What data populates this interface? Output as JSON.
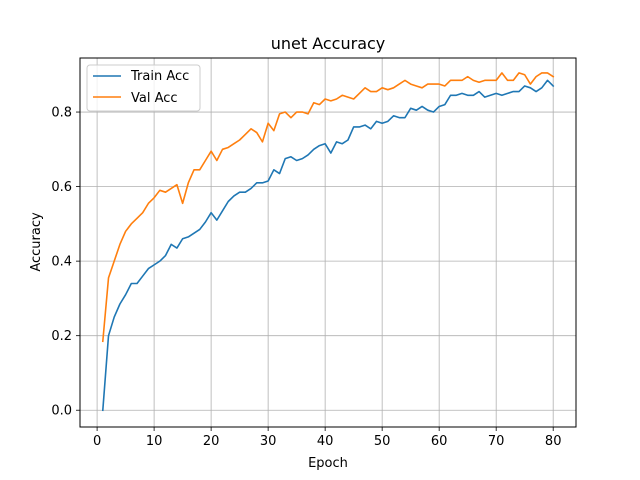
{
  "chart_data": {
    "type": "line",
    "title": "unet Accuracy",
    "xlabel": "Epoch",
    "ylabel": "Accuracy",
    "xlim": [
      -3,
      84
    ],
    "ylim": [
      -0.045,
      0.945
    ],
    "xticks": [
      0,
      10,
      20,
      30,
      40,
      50,
      60,
      70,
      80
    ],
    "yticks": [
      0.0,
      0.2,
      0.4,
      0.6,
      0.8
    ],
    "ytick_labels": [
      "0.0",
      "0.2",
      "0.4",
      "0.6",
      "0.8"
    ],
    "grid": true,
    "legend_position": "top-left",
    "x": [
      1,
      2,
      3,
      4,
      5,
      6,
      7,
      8,
      9,
      10,
      11,
      12,
      13,
      14,
      15,
      16,
      17,
      18,
      19,
      20,
      21,
      22,
      23,
      24,
      25,
      26,
      27,
      28,
      29,
      30,
      31,
      32,
      33,
      34,
      35,
      36,
      37,
      38,
      39,
      40,
      41,
      42,
      43,
      44,
      45,
      46,
      47,
      48,
      49,
      50,
      51,
      52,
      53,
      54,
      55,
      56,
      57,
      58,
      59,
      60,
      61,
      62,
      63,
      64,
      65,
      66,
      67,
      68,
      69,
      70,
      71,
      72,
      73,
      74,
      75,
      76,
      77,
      78,
      79,
      80
    ],
    "series": [
      {
        "name": "Train Acc",
        "color": "#1f77b4",
        "values": [
          0.0,
          0.2,
          0.25,
          0.285,
          0.31,
          0.34,
          0.34,
          0.36,
          0.38,
          0.39,
          0.4,
          0.415,
          0.445,
          0.435,
          0.46,
          0.465,
          0.475,
          0.485,
          0.505,
          0.53,
          0.51,
          0.535,
          0.56,
          0.575,
          0.585,
          0.585,
          0.595,
          0.61,
          0.61,
          0.615,
          0.645,
          0.635,
          0.675,
          0.68,
          0.67,
          0.675,
          0.685,
          0.7,
          0.71,
          0.715,
          0.69,
          0.72,
          0.715,
          0.725,
          0.76,
          0.76,
          0.765,
          0.755,
          0.775,
          0.77,
          0.775,
          0.79,
          0.785,
          0.785,
          0.81,
          0.805,
          0.815,
          0.805,
          0.8,
          0.815,
          0.82,
          0.845,
          0.845,
          0.85,
          0.845,
          0.845,
          0.855,
          0.84,
          0.845,
          0.85,
          0.845,
          0.85,
          0.855,
          0.855,
          0.87,
          0.865,
          0.855,
          0.865,
          0.885,
          0.87
        ]
      },
      {
        "name": "Val Acc",
        "color": "#ff7f0e",
        "values": [
          0.185,
          0.355,
          0.4,
          0.445,
          0.48,
          0.5,
          0.515,
          0.53,
          0.555,
          0.57,
          0.59,
          0.585,
          0.595,
          0.605,
          0.555,
          0.61,
          0.645,
          0.645,
          0.67,
          0.695,
          0.67,
          0.7,
          0.705,
          0.715,
          0.725,
          0.74,
          0.755,
          0.745,
          0.72,
          0.77,
          0.75,
          0.795,
          0.8,
          0.785,
          0.8,
          0.8,
          0.795,
          0.825,
          0.82,
          0.835,
          0.83,
          0.835,
          0.845,
          0.84,
          0.835,
          0.85,
          0.865,
          0.855,
          0.855,
          0.865,
          0.86,
          0.865,
          0.875,
          0.885,
          0.875,
          0.87,
          0.865,
          0.875,
          0.875,
          0.875,
          0.87,
          0.885,
          0.885,
          0.885,
          0.895,
          0.885,
          0.88,
          0.885,
          0.885,
          0.885,
          0.905,
          0.885,
          0.885,
          0.905,
          0.9,
          0.875,
          0.895,
          0.905,
          0.905,
          0.895
        ]
      }
    ]
  }
}
